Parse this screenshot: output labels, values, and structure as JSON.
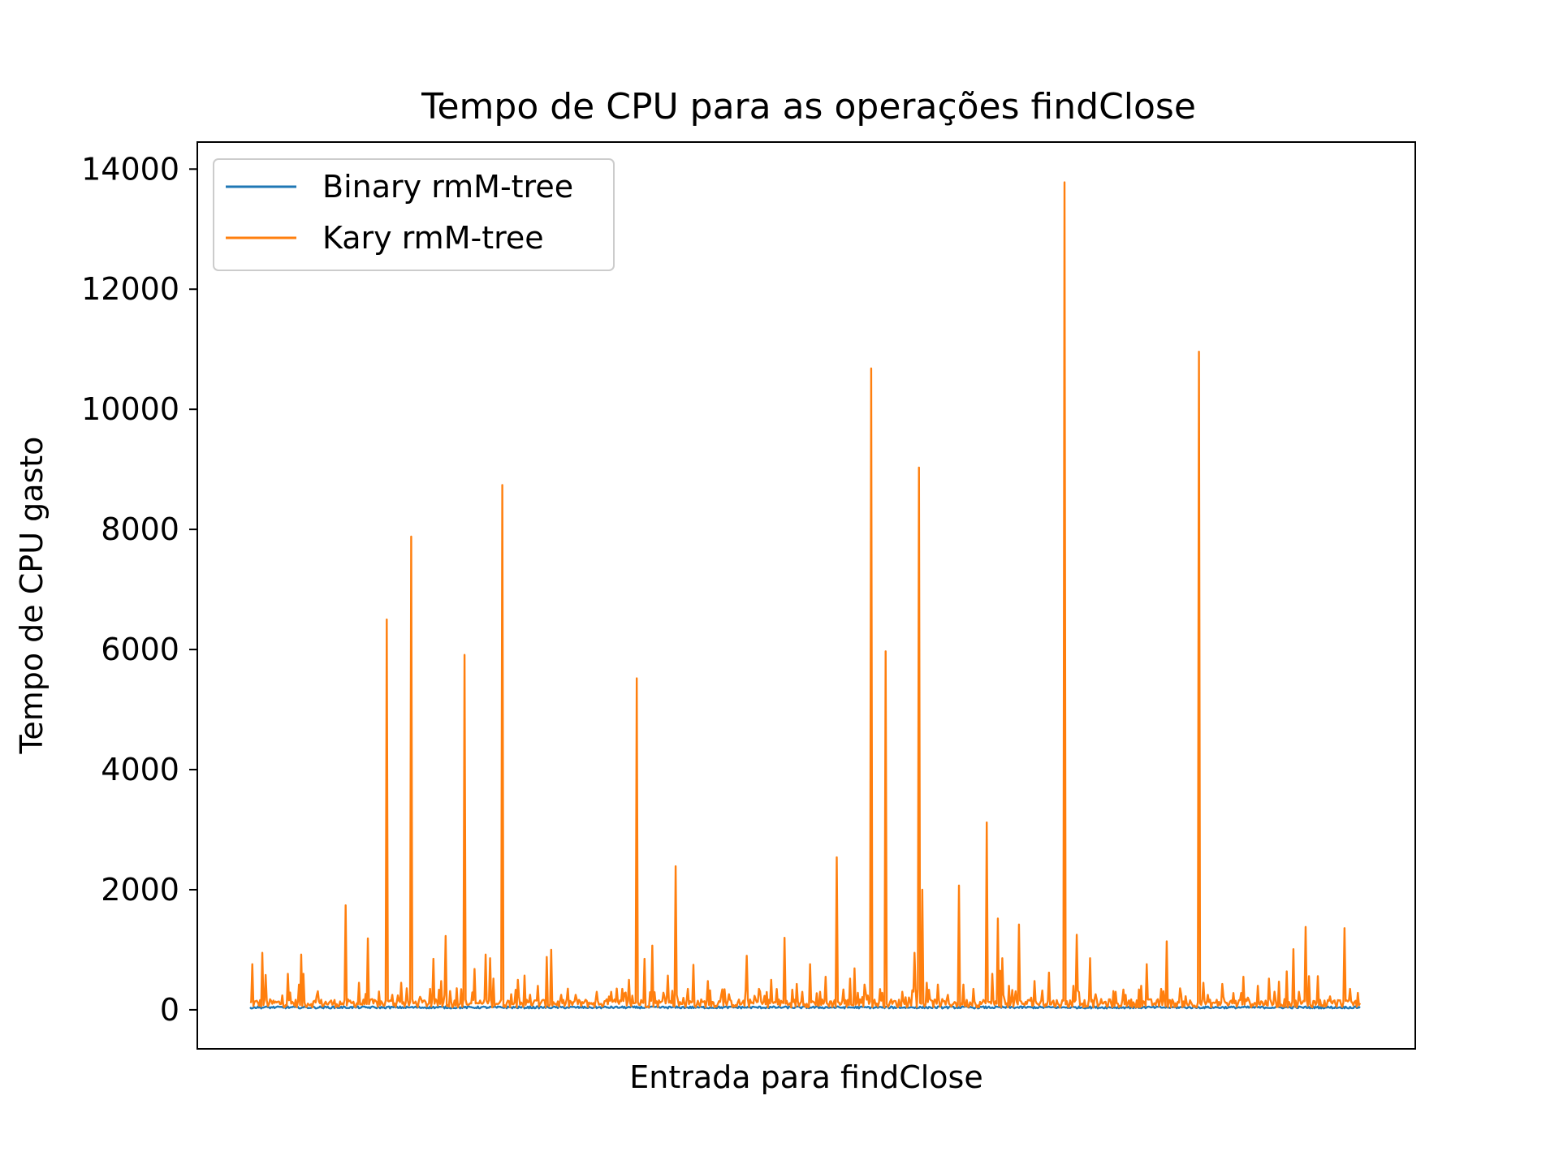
{
  "chart_data": {
    "type": "line",
    "title": "Tempo de CPU para as operações findClose",
    "xlabel": "Entrada para findClose",
    "ylabel": "Tempo de CPU gasto",
    "ylim": [
      -650,
      14450
    ],
    "xlim": [
      -50,
      1050
    ],
    "yticks": [
      0,
      2000,
      4000,
      6000,
      8000,
      10000,
      12000,
      14000
    ],
    "ytick_labels": [
      "0",
      "2000",
      "4000",
      "6000",
      "8000",
      "10000",
      "12000",
      "14000"
    ],
    "x_ticks_visible": false,
    "grid": false,
    "legend_position": "upper left",
    "series": [
      {
        "name": "Binary rmM-tree",
        "color": "#1f77b4",
        "x_count": 1000,
        "baseline": 40,
        "variation": 35,
        "points": []
      },
      {
        "name": "Kary rmM-tree",
        "color": "#ff7f0e",
        "x_count": 1000,
        "baseline": 110,
        "spikes": [
          [
            2,
            760
          ],
          [
            12,
            950
          ],
          [
            15,
            580
          ],
          [
            37,
            600
          ],
          [
            48,
            420
          ],
          [
            50,
            920
          ],
          [
            52,
            600
          ],
          [
            67,
            310
          ],
          [
            94,
            1740
          ],
          [
            107,
            450
          ],
          [
            116,
            1190
          ],
          [
            134,
            6500
          ],
          [
            140,
            250
          ],
          [
            148,
            450
          ],
          [
            158,
            7880
          ],
          [
            177,
            350
          ],
          [
            180,
            850
          ],
          [
            188,
            480
          ],
          [
            192,
            1230
          ],
          [
            203,
            360
          ],
          [
            211,
            5910
          ],
          [
            220,
            680
          ],
          [
            231,
            920
          ],
          [
            236,
            860
          ],
          [
            239,
            520
          ],
          [
            248,
            8740
          ],
          [
            263,
            500
          ],
          [
            269,
            570
          ],
          [
            283,
            400
          ],
          [
            291,
            880
          ],
          [
            296,
            1000
          ],
          [
            320,
            250
          ],
          [
            340,
            300
          ],
          [
            355,
            300
          ],
          [
            365,
            350
          ],
          [
            372,
            500
          ],
          [
            380,
            5520
          ],
          [
            387,
            850
          ],
          [
            395,
            1070
          ],
          [
            410,
            570
          ],
          [
            418,
            2390
          ],
          [
            425,
            200
          ],
          [
            430,
            350
          ],
          [
            435,
            750
          ],
          [
            450,
            480
          ],
          [
            470,
            260
          ],
          [
            488,
            900
          ],
          [
            500,
            350
          ],
          [
            512,
            500
          ],
          [
            525,
            1200
          ],
          [
            537,
            430
          ],
          [
            542,
            300
          ],
          [
            550,
            760
          ],
          [
            560,
            300
          ],
          [
            565,
            550
          ],
          [
            576,
            2540
          ],
          [
            583,
            340
          ],
          [
            589,
            520
          ],
          [
            594,
            690
          ],
          [
            603,
            420
          ],
          [
            610,
            10680
          ],
          [
            624,
            5970
          ],
          [
            640,
            300
          ],
          [
            650,
            300
          ],
          [
            652,
            950
          ],
          [
            657,
            9030
          ],
          [
            660,
            2000
          ],
          [
            664,
            450
          ],
          [
            675,
            420
          ],
          [
            685,
            250
          ],
          [
            696,
            2070
          ],
          [
            700,
            420
          ],
          [
            710,
            350
          ],
          [
            723,
            3120
          ],
          [
            729,
            600
          ],
          [
            734,
            1520
          ],
          [
            737,
            650
          ],
          [
            739,
            860
          ],
          [
            745,
            400
          ],
          [
            749,
            330
          ],
          [
            755,
            1420
          ],
          [
            770,
            480
          ],
          [
            785,
            620
          ],
          [
            800,
            13780
          ],
          [
            808,
            400
          ],
          [
            812,
            1250
          ],
          [
            825,
            860
          ],
          [
            830,
            260
          ],
          [
            850,
            300
          ],
          [
            860,
            250
          ],
          [
            875,
            400
          ],
          [
            880,
            760
          ],
          [
            895,
            350
          ],
          [
            900,
            1140
          ],
          [
            932,
            10960
          ],
          [
            936,
            450
          ],
          [
            940,
            250
          ],
          [
            955,
            430
          ],
          [
            966,
            280
          ],
          [
            975,
            550
          ],
          [
            990,
            400
          ],
          [
            1000,
            520
          ],
          [
            1010,
            470
          ],
          [
            1018,
            640
          ],
          [
            1025,
            1010
          ],
          [
            1030,
            300
          ],
          [
            1036,
            1380
          ],
          [
            1040,
            560
          ],
          [
            1048,
            560
          ],
          [
            1075,
            1360
          ],
          [
            1080,
            350
          ],
          [
            1088,
            250
          ]
        ]
      }
    ]
  }
}
